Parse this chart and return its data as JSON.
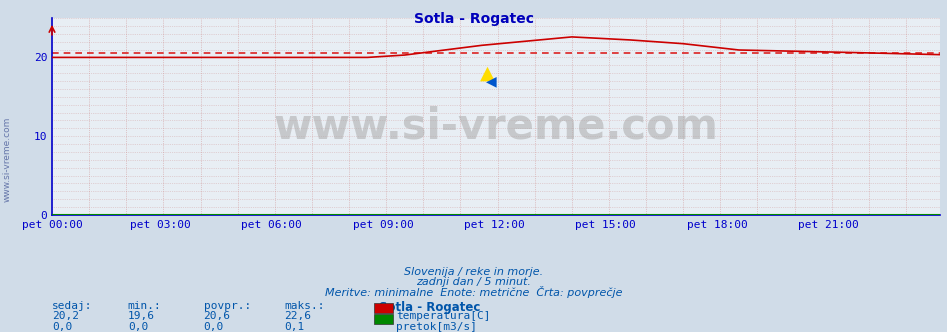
{
  "title": "Sotla - Rogatec",
  "bg_color": "#d0dce8",
  "plot_bg_color": "#e8eef4",
  "x_labels": [
    "pet 00:00",
    "pet 03:00",
    "pet 06:00",
    "pet 09:00",
    "pet 12:00",
    "pet 15:00",
    "pet 18:00",
    "pet 21:00"
  ],
  "x_ticks_frac": [
    0.0,
    0.125,
    0.25,
    0.375,
    0.5,
    0.625,
    0.75,
    0.875
  ],
  "total_points": 288,
  "ylim": [
    0,
    25
  ],
  "yticks": [
    0,
    10,
    20
  ],
  "temp_color": "#cc0000",
  "flow_color": "#008800",
  "avg_line_color": "#dd2222",
  "avg_value": 20.6,
  "title_color": "#0000bb",
  "axis_color": "#0000cc",
  "tick_color": "#0000cc",
  "text_color": "#0055aa",
  "grid_color": "#cc8888",
  "footer_line1": "Slovenija / reke in morje.",
  "footer_line2": "zadnji dan / 5 minut.",
  "footer_line3": "Meritve: minimalne  Enote: metrične  Črta: povprečje",
  "legend_title": "Sotla - Rogatec",
  "legend_temp_label": "temperatura[C]",
  "legend_flow_label": "pretok[m3/s]",
  "stat_headers": [
    "sedaj:",
    "min.:",
    "povpr.:",
    "maks.:"
  ],
  "temp_stats": [
    "20,2",
    "19,6",
    "20,6",
    "22,6"
  ],
  "flow_stats": [
    "0,0",
    "0,0",
    "0,0",
    "0,1"
  ],
  "watermark": "www.si-vreme.com",
  "sidebar_text": "www.si-vreme.com"
}
